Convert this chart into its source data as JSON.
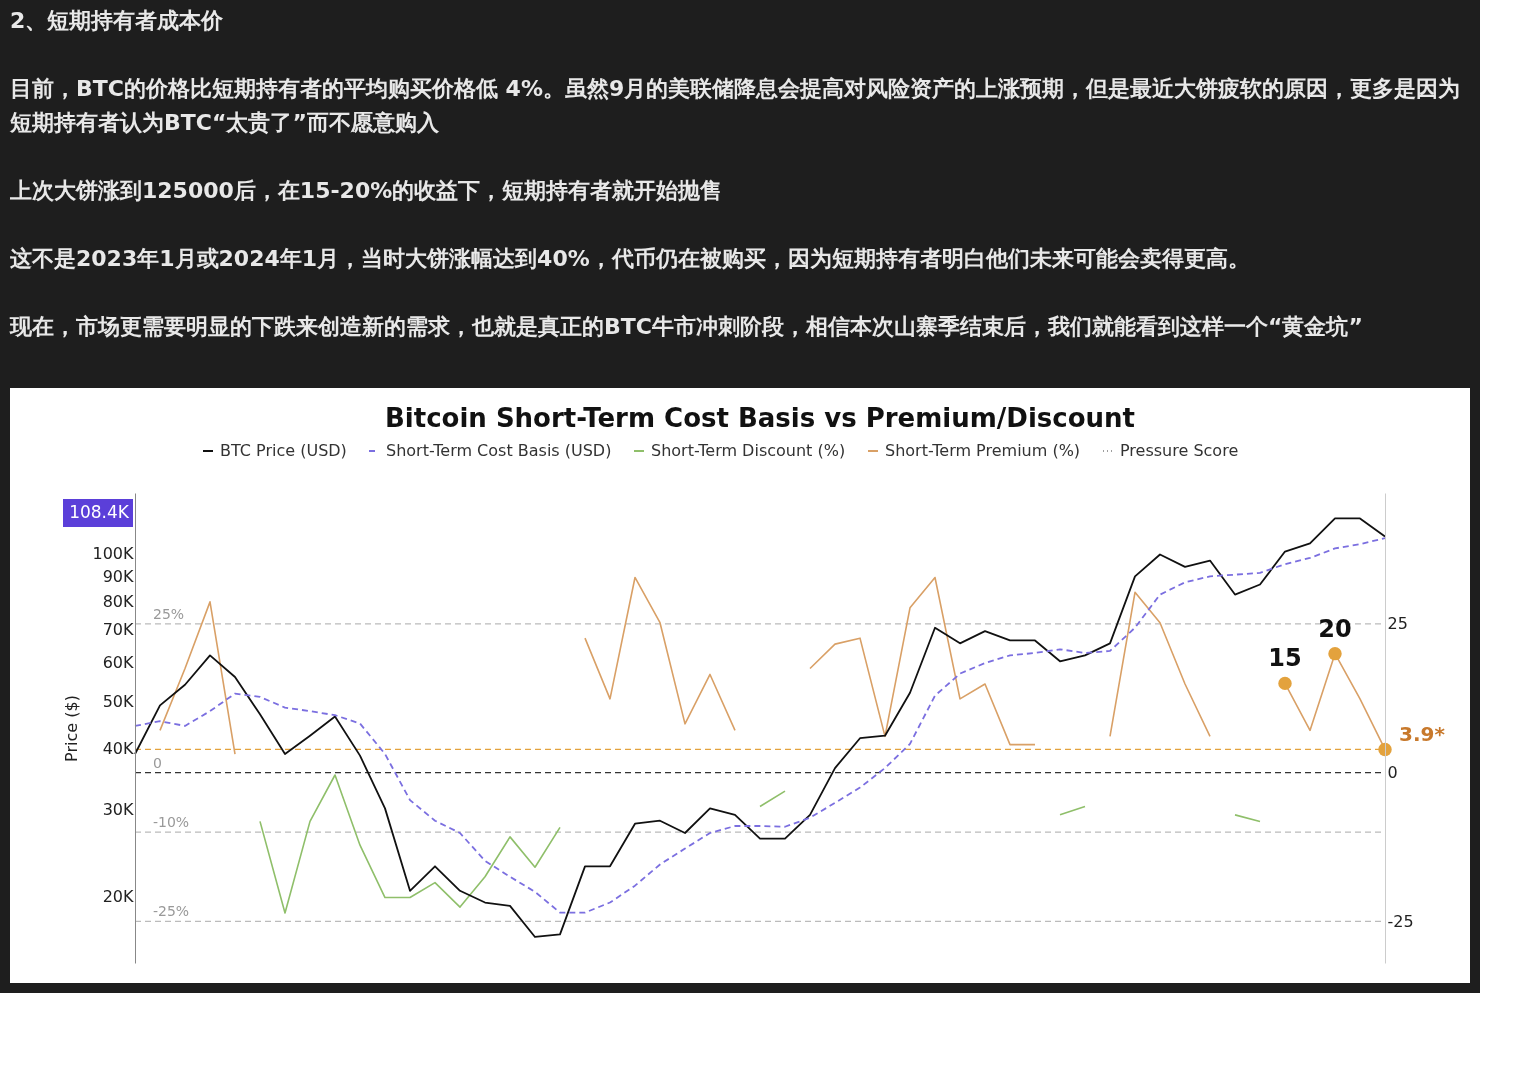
{
  "chart_data": {
    "type": "line",
    "title": "Bitcoin Short-Term Cost Basis vs Premium/Discount",
    "ylabel": "Price ($)",
    "categories": [
      null,
      null,
      null,
      null,
      null,
      null,
      null,
      null,
      null,
      null,
      null,
      null,
      null,
      null,
      null,
      null,
      null,
      null,
      null,
      null,
      null,
      null,
      null,
      null,
      null,
      null,
      null,
      null,
      null,
      null,
      null,
      null,
      null,
      null,
      null,
      null,
      null,
      null,
      null,
      null,
      null,
      null,
      null,
      null,
      null,
      null,
      null,
      null,
      null,
      null,
      null
    ],
    "log": "y",
    "ylim": [
      14600,
      133000
    ],
    "yticks": [
      {
        "value": 20000,
        "label": "20K"
      },
      {
        "value": 30000,
        "label": "30K"
      },
      {
        "value": 40000,
        "label": "40K"
      },
      {
        "value": 50000,
        "label": "50K"
      },
      {
        "value": 60000,
        "label": "60K"
      },
      {
        "value": 70000,
        "label": "70K"
      },
      {
        "value": 80000,
        "label": "80K"
      },
      {
        "value": 90000,
        "label": "90K"
      },
      {
        "value": 100000,
        "label": "100K"
      }
    ],
    "y2lim": [
      -32,
      47
    ],
    "y2ticks": [
      -25,
      0,
      25
    ],
    "grid": false,
    "legend": "top",
    "series": [
      {
        "name": "BTC Price (USD)",
        "color": "#111111",
        "line_style": "solid",
        "values": [
          39000,
          49000,
          54000,
          62000,
          56000,
          47000,
          39000,
          42500,
          46500,
          38700,
          30200,
          20500,
          23000,
          20500,
          19400,
          19100,
          16500,
          16700,
          23000,
          23000,
          28100,
          28500,
          26900,
          30200,
          29300,
          26200,
          26200,
          29300,
          36500,
          42000,
          42500,
          52000,
          70600,
          65600,
          69500,
          66500,
          66500,
          60300,
          62000,
          65600,
          89900,
          99600,
          94000,
          96800,
          82500,
          86500,
          101000,
          105000,
          118000,
          118000,
          108400
        ]
      },
      {
        "name": "Short-Term Cost Basis (USD)",
        "color": "#7b6fe0",
        "line_style": "dashed",
        "values": [
          44500,
          45500,
          44500,
          47700,
          51800,
          51000,
          48500,
          47700,
          46800,
          45000,
          39000,
          31400,
          28500,
          26900,
          23600,
          21900,
          20400,
          18500,
          18500,
          19400,
          21000,
          23200,
          25000,
          26900,
          27800,
          27800,
          27700,
          28900,
          31000,
          33300,
          36500,
          40900,
          51300,
          56900,
          59800,
          62000,
          62700,
          63800,
          62700,
          63300,
          70600,
          82500,
          87400,
          89900,
          90600,
          91400,
          95200,
          98000,
          102500,
          104600,
          107600
        ]
      },
      {
        "name": "Short-Term Discount (%)",
        "color": "#8fbf6a",
        "line_style": "solid",
        "axis": "y2",
        "values": [
          null,
          null,
          null,
          null,
          null,
          -8.2,
          -23.6,
          -8.2,
          -0.4,
          -12.2,
          -21,
          -21,
          -18.5,
          -22.6,
          -17.5,
          -10.8,
          -15.9,
          -9.2,
          null,
          null,
          null,
          null,
          null,
          null,
          null,
          -5.7,
          -3.1,
          null,
          null,
          null,
          null,
          null,
          null,
          null,
          null,
          null,
          null,
          -7.1,
          -5.7,
          null,
          null,
          null,
          null,
          null,
          -7.1,
          -8.2,
          null,
          null,
          null,
          null,
          null
        ]
      },
      {
        "name": "Short-Term Premium (%)",
        "color": "#d9a066",
        "line_style": "solid",
        "axis": "y2",
        "values": [
          null,
          7.1,
          17.5,
          28.7,
          3.1,
          null,
          null,
          null,
          null,
          null,
          null,
          null,
          null,
          null,
          null,
          null,
          null,
          null,
          22.6,
          12.4,
          32.8,
          25.2,
          8.2,
          16.5,
          7.1,
          null,
          null,
          17.5,
          21.6,
          22.6,
          6.1,
          27.7,
          32.8,
          12.4,
          14.9,
          4.7,
          4.7,
          null,
          null,
          6.1,
          30.3,
          25.2,
          14.9,
          6.1,
          null,
          null,
          15,
          7.1,
          20,
          12.4,
          3.9
        ]
      },
      {
        "name": "Pressure Score",
        "color": "#9e9e9e",
        "line_style": "dotted",
        "axis": "y2",
        "values": [
          null,
          null,
          null,
          null,
          null,
          null,
          null,
          null,
          null,
          null,
          null,
          null,
          null,
          null,
          null,
          null,
          null,
          null,
          null,
          null,
          null,
          null,
          null,
          null,
          null,
          null,
          null,
          null,
          null,
          null,
          null,
          null,
          null,
          null,
          null,
          null,
          null,
          null,
          null,
          null,
          null,
          null,
          null,
          null,
          null,
          null,
          null,
          null,
          null,
          null,
          null
        ]
      },
      {
        "type": "scatter",
        "color": "#e3a23d",
        "axis": "y2",
        "values": [
          null,
          null,
          null,
          null,
          null,
          null,
          null,
          null,
          null,
          null,
          null,
          null,
          null,
          null,
          null,
          null,
          null,
          null,
          null,
          null,
          null,
          null,
          null,
          null,
          null,
          null,
          null,
          null,
          null,
          null,
          null,
          null,
          null,
          null,
          null,
          null,
          null,
          null,
          null,
          null,
          null,
          null,
          null,
          null,
          null,
          null,
          15,
          null,
          20,
          null,
          3.9
        ],
        "value_labels": [
          null,
          null,
          null,
          null,
          null,
          null,
          null,
          null,
          null,
          null,
          null,
          null,
          null,
          null,
          null,
          null,
          null,
          null,
          null,
          null,
          null,
          null,
          null,
          null,
          null,
          null,
          null,
          null,
          null,
          null,
          null,
          null,
          null,
          null,
          null,
          null,
          null,
          null,
          null,
          null,
          null,
          null,
          null,
          null,
          null,
          null,
          "15",
          null,
          "20",
          null,
          "3.9*"
        ]
      }
    ],
    "ref_lines": [
      {
        "axis": "y2",
        "value": 25,
        "label": "25%",
        "color": "#bbbbbb",
        "line_style": "dashed"
      },
      {
        "axis": "y2",
        "value": 0,
        "label": "0",
        "color": "#333333",
        "line_style": "dashed"
      },
      {
        "axis": "y2",
        "value": 3.9,
        "color": "#e3a23d",
        "line_style": "dashed"
      },
      {
        "axis": "y2",
        "value": -10,
        "label": "-10%",
        "color": "#bbbbbb",
        "line_style": "dashed"
      },
      {
        "axis": "y2",
        "value": -25,
        "label": "-25%",
        "color": "#bbbbbb",
        "line_style": "dashed"
      }
    ],
    "annotations": [
      "2、短期持有者成本价",
      "目前，BTC的价格比短期持有者的平均购买价格低 4%。虽然9月的美联储降息会提高对风险资产的上涨预期，但是最近大饼疲软的原因，更多是因为短期持有者认为BTC“太贵了”而不愿意购入",
      "上次大饼涨到125000后，在15-20%的收益下，短期持有者就开始抛售",
      "这不是2023年1月或2024年1月，当时大饼涨幅达到40%，代币仍在被购买，因为短期持有者明白他们未来可能会卖得更高。",
      "现在，市场更需要明显的下跌来创造新的需求，也就是真正的BTC牛市冲刺阶段，相信本次山寨季结束后，我们就能看到这样一个“黄金坑”",
      "108.4K"
    ]
  }
}
